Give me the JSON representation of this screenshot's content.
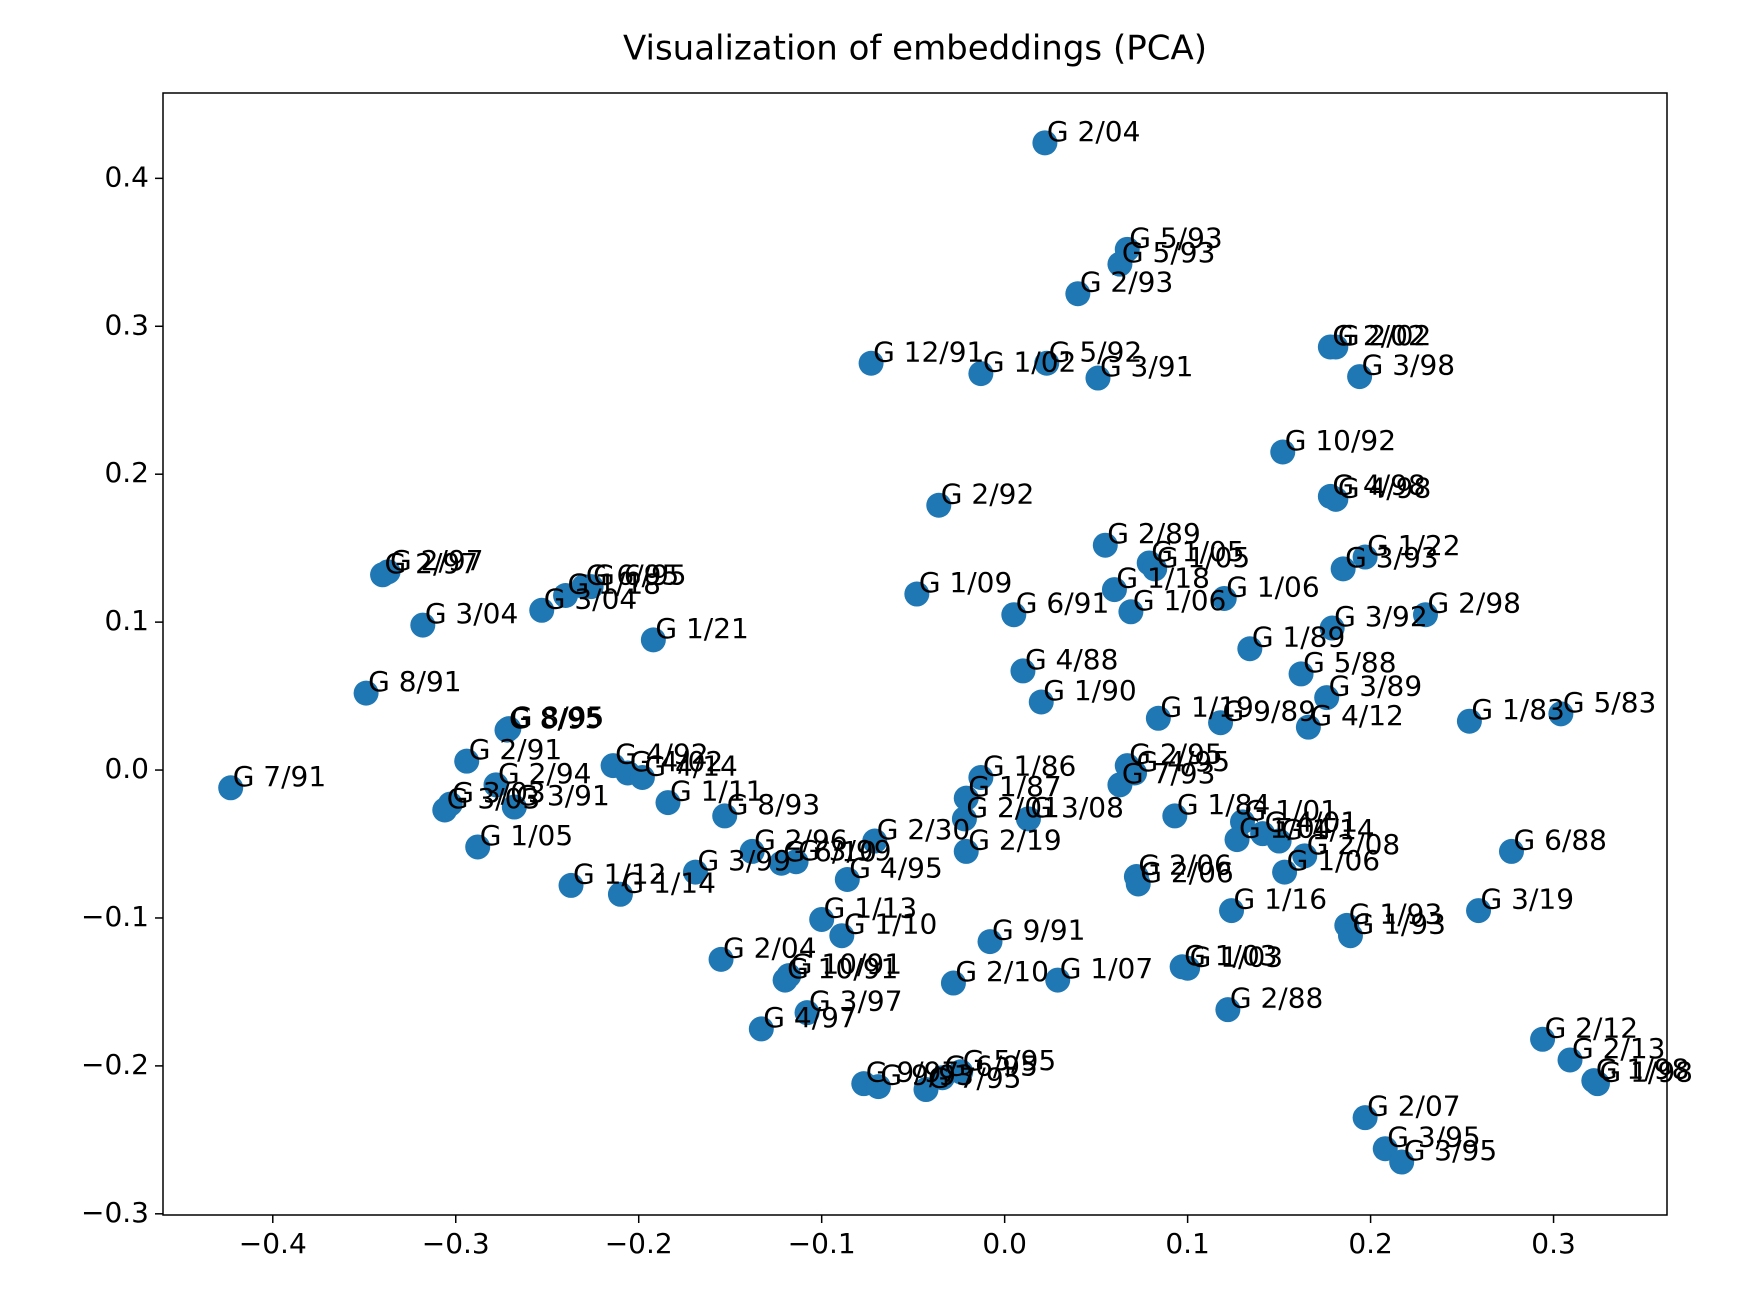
{
  "chart_data": {
    "type": "scatter",
    "title": "Visualization of embeddings (PCA)",
    "color": "#1f77b4",
    "xlim": [
      -0.46,
      0.362
    ],
    "ylim": [
      -0.3008,
      0.4577
    ],
    "xticks": [
      {
        "value": -0.4,
        "label": "−0.4"
      },
      {
        "value": -0.3,
        "label": "−0.3"
      },
      {
        "value": -0.2,
        "label": "−0.2"
      },
      {
        "value": -0.1,
        "label": "−0.1"
      },
      {
        "value": 0.0,
        "label": "0.0"
      },
      0.1,
      0.2,
      0.3
    ],
    "yticks": [
      {
        "value": -0.3,
        "label": "−0.3"
      },
      {
        "value": -0.2,
        "label": "−0.2"
      },
      {
        "value": -0.1,
        "label": "−0.1"
      },
      {
        "value": 0.0,
        "label": "0.0"
      },
      0.1,
      0.2,
      0.3,
      0.4
    ],
    "labels": [
      "G 2/04",
      "G 5/93",
      "G 5/93",
      "G 2/93",
      "G 2/02",
      "G 2/02",
      "G 3/98",
      "G 12/91",
      "G 1/02",
      "G 5/92",
      "G 3/91",
      "G 10/92",
      "G 4/98",
      "G 4/98",
      "G 2/92",
      "G 2/89",
      "G 1/05",
      "G 1/05",
      "G 1/22",
      "G 3/93",
      "G 2/97",
      "G 2/97",
      "G 6/95",
      "G 6/95",
      "G 1/18",
      "G 3/04",
      "G 3/04",
      "G 1/09",
      "G 6/91",
      "G 1/18",
      "G 1/06",
      "G 1/06",
      "G 3/92",
      "G 2/98",
      "G 1/21",
      "G 1/89",
      "G 5/88",
      "G 4/88",
      "G 8/91",
      "G 1/90",
      "G 3/89",
      "G 1/19",
      "G 9/89",
      "G 4/12",
      "G 1/83",
      "G 5/83",
      "G 8/95",
      "G 8/95",
      "G 7/91",
      "G 2/91",
      "G 2/94",
      "G 4/92",
      "G 4/02",
      "G 4/14",
      "G 3/03",
      "G 3/03",
      "G 3/91",
      "G 1/11",
      "G 8/93",
      "G 1/05",
      "G 1/86",
      "G 2/95",
      "G 4/95",
      "G 7/93",
      "G 1/87",
      "G 3/08",
      "G 2/01",
      "G 1/84",
      "G 1/01",
      "G 4/01",
      "G 1/04",
      "G 1/14",
      "G 2/08",
      "G 6/88",
      "G 2/30",
      "G 2/19",
      "G 2/96",
      "G 6/10",
      "G 3/99",
      "G 1/12",
      "G 1/14",
      "G 3/99",
      "G 4/95",
      "G 2/06",
      "G 2/06",
      "G 1/06",
      "G 1/16",
      "G 1/93",
      "G 1/93",
      "G 3/19",
      "G 1/13",
      "G 1/10",
      "G 9/91",
      "G 2/04",
      "G 10/91",
      "G 10/91",
      "G 2/10",
      "G 1/07",
      "G 1/03",
      "G 1/03",
      "G 2/88",
      "G 3/97",
      "G 4/97",
      "G 2/12",
      "G 2/13",
      "G 1/98",
      "G 1/98",
      "G 2/07",
      "G 3/95",
      "G 3/95",
      "G 9/97",
      "G 9/93",
      "G 7/95",
      "G 6/95",
      "G 5/95"
    ],
    "x": [
      0.022,
      0.067,
      0.063,
      0.04,
      0.178,
      0.181,
      0.194,
      -0.073,
      -0.013,
      0.023,
      0.051,
      0.152,
      0.178,
      0.181,
      -0.036,
      0.055,
      0.079,
      0.082,
      0.197,
      0.185,
      -0.34,
      -0.337,
      -0.23,
      -0.226,
      -0.24,
      -0.253,
      -0.318,
      -0.048,
      0.005,
      0.06,
      0.069,
      0.12,
      0.179,
      0.23,
      -0.192,
      0.134,
      0.162,
      0.01,
      -0.349,
      0.02,
      0.176,
      0.084,
      0.118,
      0.166,
      0.254,
      0.304,
      -0.272,
      -0.271,
      -0.423,
      -0.294,
      -0.278,
      -0.214,
      -0.206,
      -0.198,
      -0.306,
      -0.303,
      -0.268,
      -0.184,
      -0.153,
      -0.288,
      -0.013,
      0.067,
      0.071,
      0.063,
      -0.021,
      0.013,
      -0.022,
      0.093,
      0.13,
      0.141,
      0.127,
      0.15,
      0.164,
      0.277,
      -0.071,
      -0.021,
      -0.138,
      -0.122,
      -0.114,
      -0.237,
      -0.21,
      -0.169,
      -0.086,
      0.072,
      0.073,
      0.153,
      0.124,
      0.187,
      0.189,
      0.259,
      -0.1,
      -0.089,
      -0.008,
      -0.155,
      -0.12,
      -0.118,
      -0.028,
      0.029,
      0.097,
      0.1,
      0.122,
      -0.108,
      -0.133,
      0.294,
      0.309,
      0.322,
      0.324,
      0.197,
      0.208,
      0.217,
      -0.077,
      -0.069,
      -0.043,
      -0.034,
      -0.024
    ],
    "y": [
      0.424,
      0.352,
      0.342,
      0.322,
      0.286,
      0.286,
      0.266,
      0.275,
      0.268,
      0.275,
      0.265,
      0.215,
      0.185,
      0.183,
      0.179,
      0.152,
      0.14,
      0.136,
      0.144,
      0.136,
      0.132,
      0.134,
      0.124,
      0.124,
      0.118,
      0.108,
      0.098,
      0.119,
      0.105,
      0.122,
      0.107,
      0.116,
      0.096,
      0.105,
      0.088,
      0.082,
      0.065,
      0.067,
      0.052,
      0.046,
      0.049,
      0.035,
      0.032,
      0.029,
      0.033,
      0.038,
      0.027,
      0.028,
      -0.012,
      0.006,
      -0.01,
      0.003,
      -0.002,
      -0.005,
      -0.027,
      -0.023,
      -0.025,
      -0.022,
      -0.031,
      -0.052,
      -0.005,
      0.003,
      -0.002,
      -0.01,
      -0.019,
      -0.033,
      -0.033,
      -0.031,
      -0.035,
      -0.043,
      -0.047,
      -0.048,
      -0.058,
      -0.055,
      -0.048,
      -0.055,
      -0.055,
      -0.063,
      -0.062,
      -0.078,
      -0.084,
      -0.069,
      -0.074,
      -0.072,
      -0.077,
      -0.069,
      -0.095,
      -0.105,
      -0.112,
      -0.095,
      -0.101,
      -0.112,
      -0.116,
      -0.128,
      -0.142,
      -0.139,
      -0.144,
      -0.142,
      -0.133,
      -0.134,
      -0.162,
      -0.164,
      -0.175,
      -0.182,
      -0.196,
      -0.21,
      -0.212,
      -0.235,
      -0.256,
      -0.265,
      -0.212,
      -0.214,
      -0.216,
      -0.208,
      -0.204
    ]
  }
}
